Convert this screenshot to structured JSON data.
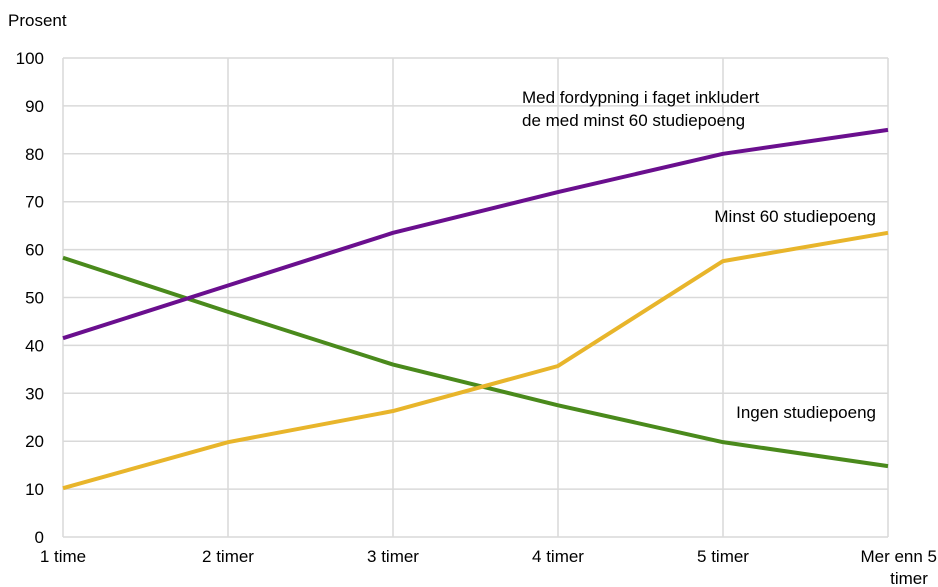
{
  "chart_data": {
    "type": "line",
    "ylabel": "Prosent",
    "ylim": [
      0,
      100
    ],
    "yticks": [
      "0",
      "10",
      "20",
      "30",
      "40",
      "50",
      "60",
      "70",
      "80",
      "90",
      "100"
    ],
    "categories": [
      "1 time",
      "2 timer",
      "3 timer",
      "4 timer",
      "5 timer",
      "Mer enn 5 timer"
    ],
    "grid": true,
    "series": [
      {
        "name": "Med fordypning i faget inkludert de med minst 60 studiepoeng",
        "label_lines": [
          "Med fordypning i faget inkludert",
          "de med minst 60 studiepoeng"
        ],
        "color": "#6a0f8e",
        "values": [
          41.5,
          52.5,
          63.5,
          72,
          80,
          85
        ]
      },
      {
        "name": "Minst 60 studiepoeng",
        "label_lines": [
          "Minst 60 studiepoeng"
        ],
        "color": "#e8b52b",
        "values": [
          10.2,
          19.8,
          26.3,
          35.7,
          57.6,
          63.5
        ]
      },
      {
        "name": "Ingen studiepoeng",
        "label_lines": [
          "Ingen studiepoeng"
        ],
        "color": "#4a8a1c",
        "values": [
          58.3,
          47,
          36,
          27.5,
          19.8,
          14.8
        ]
      }
    ]
  }
}
